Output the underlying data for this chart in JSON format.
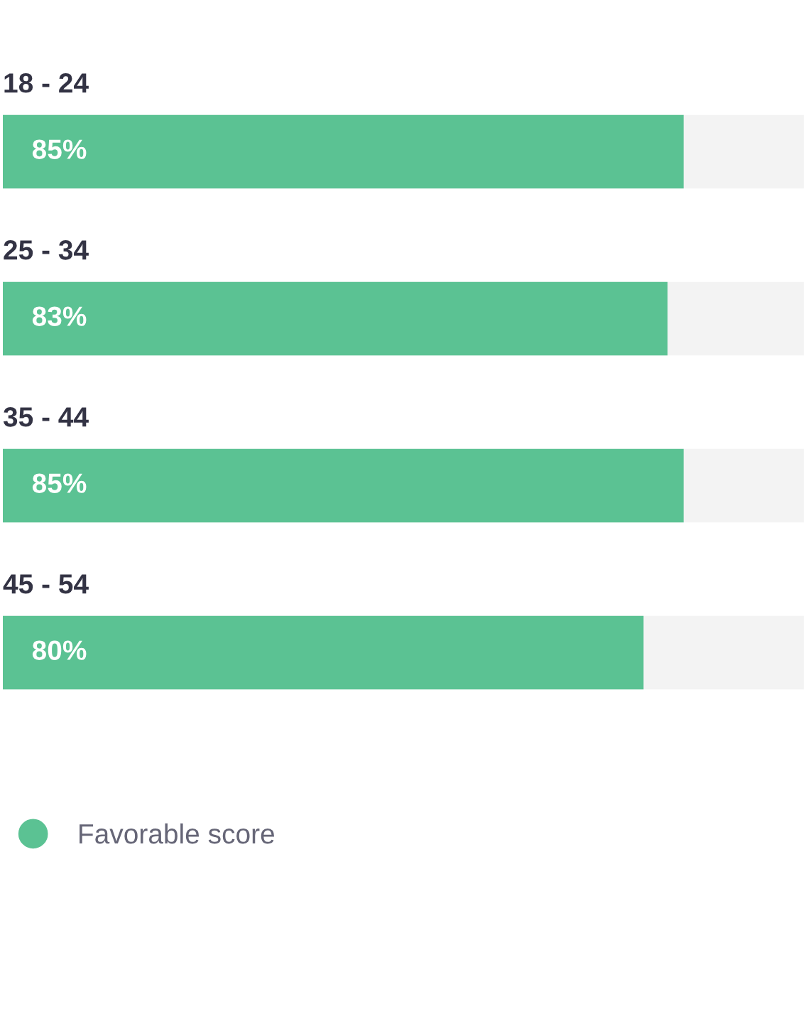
{
  "chart_data": {
    "type": "bar",
    "orientation": "horizontal",
    "categories": [
      "18 - 24",
      "25 - 34",
      "35 - 44",
      "45 - 54"
    ],
    "series": [
      {
        "name": "Favorable score",
        "color": "#5bc293",
        "values": [
          85,
          83,
          85,
          80
        ],
        "value_labels": [
          "85%",
          "83%",
          "85%",
          "80%"
        ]
      }
    ],
    "xlim": [
      0,
      100
    ],
    "legend": "bottom left"
  }
}
